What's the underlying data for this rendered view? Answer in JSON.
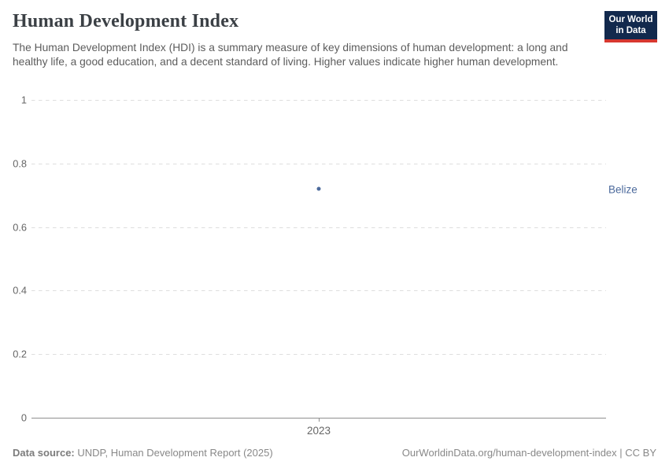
{
  "header": {
    "title": "Human Development Index",
    "subtitle": "The Human Development Index (HDI) is a summary measure of key dimensions of human development: a long and healthy life, a good education, and a decent standard of living. Higher values indicate higher human development."
  },
  "logo": {
    "line1": "Our World",
    "line2": "in Data",
    "bg_color": "#12294d",
    "stripe_color": "#d7382f"
  },
  "chart_data": {
    "type": "scatter",
    "title": "Human Development Index",
    "x": [
      2023
    ],
    "xticklabels": [
      "2023"
    ],
    "series": [
      {
        "name": "Belize",
        "values": [
          0.72
        ],
        "color": "#4c6a9c"
      }
    ],
    "xlabel": "",
    "ylabel": "",
    "ylim": [
      0,
      1
    ],
    "yticks": [
      0,
      0.2,
      0.4,
      0.6,
      0.8,
      1
    ],
    "grid": true,
    "gridline_style": "dashed",
    "legend_position": "entity-label-right"
  },
  "footer": {
    "datasource_label": "Data source:",
    "datasource_value": " UNDP, Human Development Report (2025)",
    "credit": "OurWorldinData.org/human-development-index | CC BY"
  }
}
